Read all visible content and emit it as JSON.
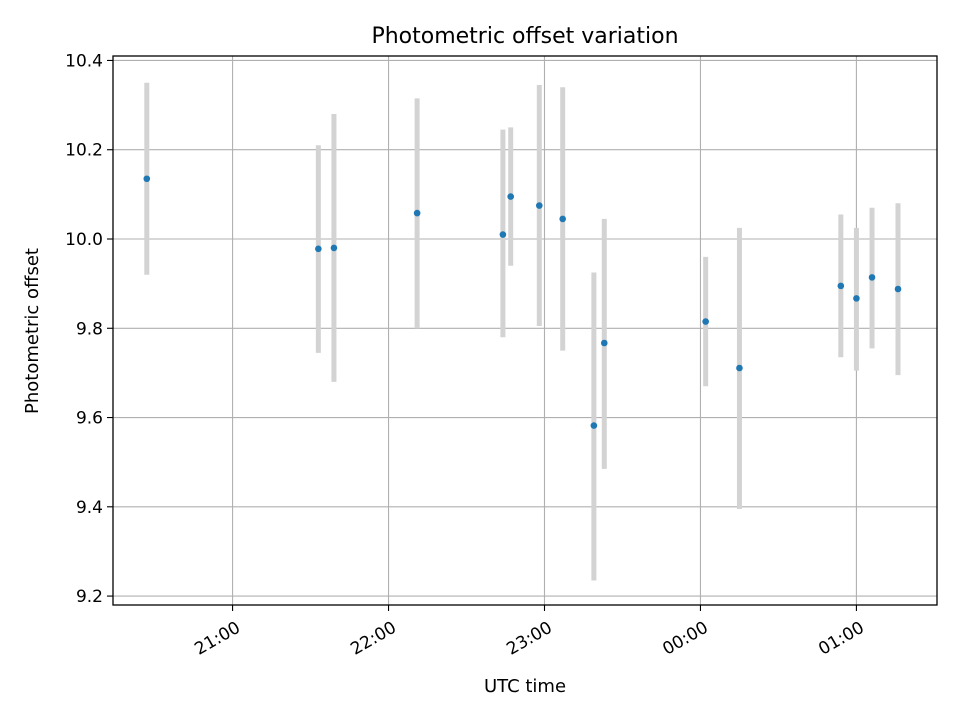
{
  "chart_data": {
    "type": "scatter",
    "title": "Photometric offset variation",
    "xlabel": "UTC time",
    "ylabel": "Photometric offset",
    "x_axis_kind": "time",
    "xlim": [
      "20:14",
      "01:31"
    ],
    "ylim": [
      9.18,
      10.41
    ],
    "x_ticks": [
      "21:00",
      "22:00",
      "23:00",
      "00:00",
      "01:00"
    ],
    "y_ticks": [
      9.2,
      9.4,
      9.6,
      9.8,
      10.0,
      10.2,
      10.4
    ],
    "grid": true,
    "point_color": "#1f77b4",
    "errorbar_color": "#d3d3d3",
    "series": [
      {
        "points": [
          {
            "x": "20:27",
            "y": 10.135,
            "y_low": 9.92,
            "y_high": 10.35
          },
          {
            "x": "21:33",
            "y": 9.978,
            "y_low": 9.745,
            "y_high": 10.21
          },
          {
            "x": "21:39",
            "y": 9.98,
            "y_low": 9.68,
            "y_high": 10.28
          },
          {
            "x": "22:11",
            "y": 10.058,
            "y_low": 9.8,
            "y_high": 10.315
          },
          {
            "x": "22:44",
            "y": 10.01,
            "y_low": 9.78,
            "y_high": 10.245
          },
          {
            "x": "22:47",
            "y": 10.095,
            "y_low": 9.94,
            "y_high": 10.25
          },
          {
            "x": "22:58",
            "y": 10.075,
            "y_low": 9.805,
            "y_high": 10.345
          },
          {
            "x": "23:07",
            "y": 10.045,
            "y_low": 9.75,
            "y_high": 10.34
          },
          {
            "x": "23:19",
            "y": 9.582,
            "y_low": 9.235,
            "y_high": 9.925
          },
          {
            "x": "23:23",
            "y": 9.767,
            "y_low": 9.485,
            "y_high": 10.045
          },
          {
            "x": "00:02",
            "y": 9.815,
            "y_low": 9.67,
            "y_high": 9.96
          },
          {
            "x": "00:15",
            "y": 9.711,
            "y_low": 9.395,
            "y_high": 10.025
          },
          {
            "x": "00:54",
            "y": 9.895,
            "y_low": 9.735,
            "y_high": 10.055
          },
          {
            "x": "01:00",
            "y": 9.867,
            "y_low": 9.705,
            "y_high": 10.025
          },
          {
            "x": "01:06",
            "y": 9.914,
            "y_low": 9.755,
            "y_high": 10.07
          },
          {
            "x": "01:16",
            "y": 9.888,
            "y_low": 9.695,
            "y_high": 10.08
          }
        ]
      }
    ]
  }
}
